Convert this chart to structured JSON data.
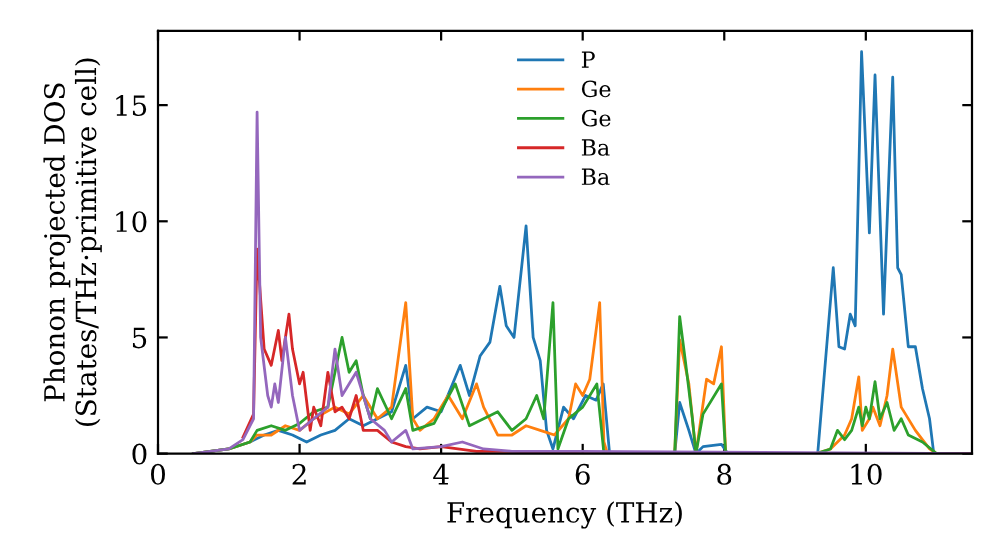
{
  "chart_data": {
    "type": "line",
    "xlabel": "Frequency (THz)",
    "ylabel": "Phonon projected DOS\n(States/THz·primitive cell)",
    "xlim": [
      0,
      11.5
    ],
    "ylim": [
      0,
      18.2
    ],
    "xticks": [
      0,
      2,
      4,
      6,
      8,
      10
    ],
    "yticks": [
      0,
      5,
      10,
      15
    ],
    "grid": false,
    "legend": "top",
    "marker": "none",
    "line_style": "solid",
    "series": [
      {
        "name": "P",
        "color": "#1f77b4",
        "x": [
          0.5,
          1.0,
          1.3,
          1.5,
          1.7,
          1.9,
          2.1,
          2.3,
          2.5,
          2.7,
          2.9,
          3.1,
          3.3,
          3.5,
          3.6,
          3.8,
          4.0,
          4.27,
          4.4,
          4.55,
          4.69,
          4.83,
          4.92,
          5.03,
          5.2,
          5.3,
          5.4,
          5.49,
          5.58,
          5.73,
          5.87,
          6.04,
          6.19,
          6.29,
          6.38,
          7.3,
          7.37,
          7.5,
          7.6,
          7.7,
          7.96,
          8.05,
          9.32,
          9.54,
          9.62,
          9.7,
          9.78,
          9.85,
          9.94,
          10.05,
          10.13,
          10.25,
          10.38,
          10.45,
          10.5,
          10.6,
          10.7,
          10.8,
          10.9,
          10.96,
          11.5
        ],
        "values": [
          0,
          0.2,
          0.5,
          0.8,
          1.0,
          0.8,
          0.5,
          0.8,
          1.0,
          1.5,
          1.2,
          1.5,
          1.8,
          3.8,
          1.5,
          2.0,
          1.8,
          3.8,
          2.5,
          4.2,
          4.8,
          7.2,
          5.5,
          5.0,
          9.8,
          5.0,
          4.0,
          1.0,
          0.2,
          2.0,
          1.5,
          2.5,
          2.3,
          3.0,
          0,
          0,
          2.2,
          1.0,
          0,
          0.3,
          0.4,
          0,
          0,
          8.0,
          4.6,
          4.5,
          6.0,
          5.5,
          17.3,
          9.5,
          16.3,
          6.0,
          16.2,
          8.0,
          7.7,
          4.6,
          4.6,
          2.8,
          1.5,
          0,
          0
        ]
      },
      {
        "name": "Ge",
        "color": "#ff7f0e",
        "x": [
          0.5,
          1.0,
          1.3,
          1.4,
          1.6,
          1.8,
          2.0,
          2.2,
          2.5,
          2.7,
          2.9,
          3.1,
          3.3,
          3.5,
          3.6,
          3.7,
          3.9,
          4.1,
          4.3,
          4.5,
          4.6,
          4.8,
          5.0,
          5.2,
          5.4,
          5.6,
          5.8,
          5.9,
          6.0,
          6.1,
          6.24,
          6.3,
          6.35,
          7.3,
          7.37,
          7.5,
          7.6,
          7.75,
          7.85,
          7.96,
          8.02,
          9.3,
          9.5,
          9.7,
          9.8,
          9.9,
          9.95,
          10.05,
          10.1,
          10.2,
          10.3,
          10.38,
          10.5,
          10.7,
          10.9,
          11.0,
          11.5
        ],
        "values": [
          0,
          0.2,
          0.5,
          0.8,
          0.8,
          1.2,
          1.0,
          1.5,
          2.0,
          1.7,
          2.5,
          1.5,
          2.0,
          6.5,
          1.5,
          1.0,
          1.5,
          2.5,
          1.5,
          3.0,
          2.0,
          0.8,
          0.8,
          1.2,
          1.0,
          0.8,
          1.5,
          3.0,
          2.5,
          3.2,
          6.5,
          0.5,
          0,
          0,
          4.9,
          3.0,
          0,
          3.2,
          3.0,
          4.6,
          0,
          0,
          0.2,
          0.8,
          1.5,
          3.3,
          1.0,
          1.5,
          2.0,
          1.2,
          2.5,
          4.5,
          2.0,
          1.0,
          0.2,
          0,
          0
        ]
      },
      {
        "name": "Ge",
        "color": "#2ca02c",
        "x": [
          0.5,
          1.0,
          1.3,
          1.4,
          1.6,
          1.8,
          2.0,
          2.2,
          2.4,
          2.6,
          2.7,
          2.8,
          2.9,
          3.0,
          3.1,
          3.3,
          3.5,
          3.6,
          3.9,
          4.2,
          4.4,
          4.6,
          4.8,
          5.0,
          5.2,
          5.35,
          5.45,
          5.58,
          5.65,
          5.8,
          6.0,
          6.2,
          6.3,
          7.3,
          7.37,
          7.45,
          7.55,
          7.6,
          7.7,
          7.96,
          8.02,
          9.3,
          9.5,
          9.6,
          9.7,
          9.8,
          9.9,
          9.95,
          10.0,
          10.05,
          10.13,
          10.2,
          10.3,
          10.4,
          10.5,
          10.6,
          10.8,
          11.0,
          11.5
        ],
        "values": [
          0,
          0.2,
          0.5,
          1.0,
          1.2,
          1.0,
          1.3,
          1.8,
          2.0,
          5.0,
          3.5,
          4.0,
          2.5,
          1.5,
          2.8,
          1.5,
          2.8,
          1.0,
          1.3,
          3.0,
          1.2,
          1.5,
          1.8,
          1.0,
          1.5,
          2.5,
          1.5,
          6.5,
          0.2,
          1.5,
          2.0,
          3.0,
          0,
          0,
          5.9,
          4.0,
          1.5,
          0,
          1.7,
          3.0,
          0,
          0,
          0.2,
          1.0,
          0.6,
          1.0,
          2.0,
          1.2,
          2.0,
          1.5,
          3.1,
          1.5,
          2.2,
          1.0,
          1.5,
          0.8,
          0.5,
          0,
          0
        ]
      },
      {
        "name": "Ba",
        "color": "#d62728",
        "x": [
          1.2,
          1.35,
          1.4,
          1.5,
          1.6,
          1.7,
          1.75,
          1.85,
          1.9,
          2.0,
          2.05,
          2.15,
          2.2,
          2.3,
          2.4,
          2.5,
          2.6,
          2.7,
          2.8,
          2.9,
          3.1,
          3.3,
          3.5,
          3.7,
          4.0,
          4.5,
          5.0,
          6.0,
          11.5
        ],
        "values": [
          0.7,
          1.7,
          8.8,
          4.5,
          3.8,
          5.3,
          4.0,
          6.0,
          4.5,
          3.0,
          3.5,
          1.0,
          2.0,
          1.2,
          3.5,
          1.8,
          2.0,
          1.5,
          2.5,
          1.0,
          1.0,
          0.5,
          0.3,
          0.2,
          0.3,
          0.1,
          0.1,
          0,
          0
        ]
      },
      {
        "name": "Ba",
        "color": "#9467bd",
        "x": [
          0.5,
          1.0,
          1.2,
          1.35,
          1.4,
          1.45,
          1.55,
          1.6,
          1.65,
          1.7,
          1.8,
          1.9,
          2.0,
          2.2,
          2.4,
          2.5,
          2.6,
          2.8,
          3.0,
          3.2,
          3.3,
          3.5,
          3.6,
          4.0,
          4.3,
          4.6,
          5.0,
          6.0,
          11.5
        ],
        "values": [
          0,
          0.2,
          0.6,
          1.5,
          14.7,
          5.0,
          2.5,
          2.0,
          3.0,
          2.2,
          5.0,
          2.5,
          1.0,
          1.5,
          2.0,
          4.5,
          2.5,
          3.5,
          1.5,
          1.0,
          0.5,
          1.0,
          0.2,
          0.3,
          0.5,
          0.2,
          0.1,
          0.1,
          0
        ]
      }
    ]
  }
}
